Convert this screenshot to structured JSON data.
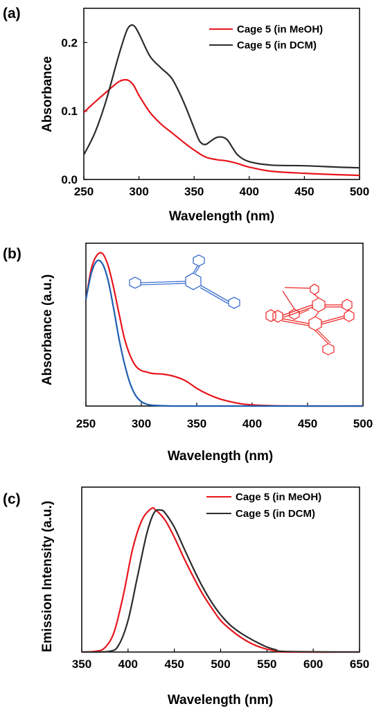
{
  "colors": {
    "red": "#e8141b",
    "black": "#2b2b2b",
    "blue": "#1f5fb0",
    "mol_blue": "#3d6fd1",
    "mol_red": "#ee2222"
  },
  "icons": {
    "panel_b_left": "blue-tris-phenylethynyl-benzene-structure",
    "panel_b_right": "red-cage-molecule-structure"
  },
  "chart_data": [
    {
      "panel": "(a)",
      "type": "line",
      "xlabel": "Wavelength (nm)",
      "ylabel": "Absorbance",
      "xlim": [
        250,
        500
      ],
      "ylim": [
        0,
        0.25
      ],
      "xticks": [
        "250",
        "300",
        "350",
        "400",
        "450",
        "500"
      ],
      "yticks": [
        "0.0",
        "0.1",
        "0.2"
      ],
      "legend_position": "top-right",
      "series": [
        {
          "name": "Cage 5 (in MeOH)",
          "color": "#e8141b",
          "x": [
            250,
            260,
            270,
            280,
            285,
            290,
            295,
            300,
            310,
            320,
            330,
            340,
            350,
            360,
            370,
            380,
            390,
            400,
            420,
            450,
            480,
            500
          ],
          "y": [
            0.098,
            0.113,
            0.127,
            0.141,
            0.145,
            0.145,
            0.138,
            0.123,
            0.098,
            0.081,
            0.068,
            0.055,
            0.043,
            0.033,
            0.029,
            0.027,
            0.023,
            0.018,
            0.012,
            0.009,
            0.007,
            0.006
          ]
        },
        {
          "name": "Cage 5 (in DCM)",
          "color": "#2b2b2b",
          "x": [
            250,
            260,
            270,
            280,
            285,
            290,
            295,
            300,
            310,
            320,
            330,
            340,
            350,
            355,
            360,
            365,
            370,
            375,
            380,
            385,
            390,
            400,
            420,
            450,
            480,
            500
          ],
          "y": [
            0.036,
            0.068,
            0.114,
            0.172,
            0.199,
            0.221,
            0.225,
            0.213,
            0.18,
            0.163,
            0.147,
            0.115,
            0.075,
            0.056,
            0.051,
            0.056,
            0.061,
            0.062,
            0.058,
            0.046,
            0.035,
            0.026,
            0.021,
            0.02,
            0.018,
            0.017
          ]
        }
      ]
    },
    {
      "panel": "(b)",
      "type": "line",
      "xlabel": "Wavelength (nm)",
      "ylabel": "Absorbance (a.u.)",
      "xlim": [
        250,
        500
      ],
      "ylim": [
        0,
        1.1
      ],
      "xticks": [
        "250",
        "300",
        "350",
        "400",
        "450",
        "500"
      ],
      "series": [
        {
          "color": "#e8141b",
          "x": [
            250,
            255,
            260,
            265,
            270,
            275,
            280,
            285,
            290,
            295,
            300,
            305,
            310,
            320,
            330,
            340,
            350,
            360,
            370,
            380,
            390,
            400,
            420,
            450,
            500
          ],
          "y": [
            0.72,
            0.93,
            1.02,
            1.03,
            0.95,
            0.8,
            0.62,
            0.45,
            0.34,
            0.27,
            0.24,
            0.23,
            0.22,
            0.215,
            0.2,
            0.17,
            0.12,
            0.08,
            0.05,
            0.03,
            0.015,
            0.008,
            0.002,
            0.0,
            0.0
          ]
        },
        {
          "color": "#1f5fb0",
          "x": [
            250,
            255,
            260,
            265,
            270,
            275,
            280,
            285,
            290,
            295,
            300,
            305,
            310,
            320,
            330,
            350,
            400,
            500
          ],
          "y": [
            0.72,
            0.9,
            0.98,
            0.96,
            0.85,
            0.66,
            0.45,
            0.28,
            0.15,
            0.07,
            0.03,
            0.012,
            0.005,
            0.002,
            0.0,
            0.0,
            0.0,
            0.0
          ]
        }
      ]
    },
    {
      "panel": "(c)",
      "type": "line",
      "xlabel": "Wavelength (nm)",
      "ylabel": "Emission Intensity (a.u.)",
      "xlim": [
        350,
        650
      ],
      "ylim": [
        0,
        1.15
      ],
      "xticks": [
        "350",
        "400",
        "450",
        "500",
        "550",
        "600",
        "650"
      ],
      "legend_position": "top-right",
      "series": [
        {
          "name": "Cage 5 (in MeOH)",
          "color": "#e8141b",
          "x": [
            350,
            365,
            375,
            385,
            395,
            405,
            415,
            425,
            430,
            440,
            450,
            460,
            470,
            480,
            490,
            500,
            510,
            520,
            530,
            540,
            550,
            560,
            570,
            650
          ],
          "y": [
            0.0,
            0.005,
            0.03,
            0.14,
            0.4,
            0.72,
            0.92,
            1.0,
            0.99,
            0.92,
            0.8,
            0.66,
            0.53,
            0.41,
            0.31,
            0.22,
            0.16,
            0.11,
            0.07,
            0.04,
            0.02,
            0.008,
            0.0,
            0.0
          ]
        },
        {
          "name": "Cage 5 (in DCM)",
          "color": "#2b2b2b",
          "x": [
            350,
            380,
            390,
            400,
            410,
            420,
            428,
            435,
            440,
            450,
            460,
            470,
            480,
            490,
            500,
            510,
            520,
            530,
            540,
            550,
            560,
            570,
            650
          ],
          "y": [
            0.0,
            0.005,
            0.05,
            0.22,
            0.52,
            0.82,
            0.97,
            0.99,
            0.97,
            0.87,
            0.73,
            0.59,
            0.46,
            0.35,
            0.26,
            0.19,
            0.14,
            0.1,
            0.065,
            0.035,
            0.015,
            0.004,
            0.0
          ]
        }
      ]
    }
  ]
}
